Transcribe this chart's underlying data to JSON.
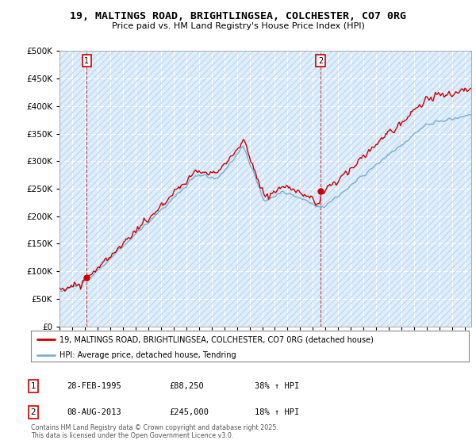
{
  "title": "19, MALTINGS ROAD, BRIGHTLINGSEA, COLCHESTER, CO7 0RG",
  "subtitle": "Price paid vs. HM Land Registry's House Price Index (HPI)",
  "ylabel_ticks": [
    "£0",
    "£50K",
    "£100K",
    "£150K",
    "£200K",
    "£250K",
    "£300K",
    "£350K",
    "£400K",
    "£450K",
    "£500K"
  ],
  "ytick_values": [
    0,
    50000,
    100000,
    150000,
    200000,
    250000,
    300000,
    350000,
    400000,
    450000,
    500000
  ],
  "ylim": [
    0,
    500000
  ],
  "xlim_start": 1993.0,
  "xlim_end": 2025.5,
  "purchase1": {
    "date": 1995.16,
    "price": 88250,
    "label": "1"
  },
  "purchase2": {
    "date": 2013.6,
    "price": 245000,
    "label": "2"
  },
  "vline1_x": 1995.16,
  "vline2_x": 2013.6,
  "legend_line1": "19, MALTINGS ROAD, BRIGHTLINGSEA, COLCHESTER, CO7 0RG (detached house)",
  "legend_line2": "HPI: Average price, detached house, Tendring",
  "annotation1_label": "1",
  "annotation1_date": "28-FEB-1995",
  "annotation1_price": "£88,250",
  "annotation1_hpi": "38% ↑ HPI",
  "annotation2_label": "2",
  "annotation2_date": "08-AUG-2013",
  "annotation2_price": "£245,000",
  "annotation2_hpi": "18% ↑ HPI",
  "footer": "Contains HM Land Registry data © Crown copyright and database right 2025.\nThis data is licensed under the Open Government Licence v3.0.",
  "line_color_price": "#cc0000",
  "line_color_hpi": "#7aafd4",
  "bg_plot_color": "#ddeeff",
  "background_color": "#ffffff",
  "grid_color": "#ffffff",
  "hatch_color": "#c8d8e8"
}
